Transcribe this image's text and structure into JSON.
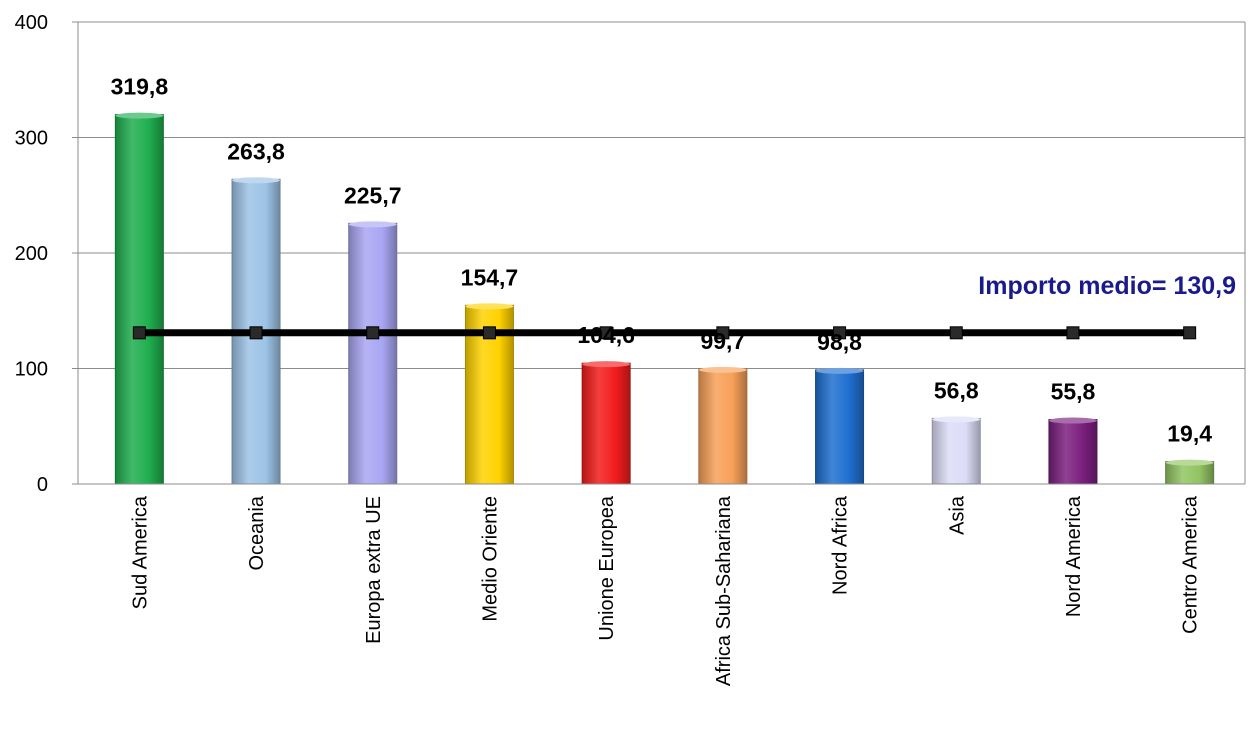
{
  "chart_data": {
    "type": "bar",
    "title": "",
    "xlabel": "",
    "ylabel": "",
    "ylim": [
      0,
      400
    ],
    "yticks": [
      0,
      100,
      200,
      300,
      400
    ],
    "grid": "horizontal",
    "categories": [
      "Sud America",
      "Oceania",
      "Europa extra UE",
      "Medio Oriente",
      "Unione Europea",
      "Africa Sub-Sahariana",
      "Nord Africa",
      "Asia",
      "Nord America",
      "Centro America"
    ],
    "values": [
      319.8,
      263.8,
      225.7,
      154.7,
      104.6,
      99.7,
      98.8,
      56.8,
      55.8,
      19.4
    ],
    "data_labels": [
      "319,8",
      "263,8",
      "225,7",
      "154,7",
      "104,6",
      "99,7",
      "98,8",
      "56,8",
      "55,8",
      "19,4"
    ],
    "bar_colors": [
      "#1fae4f",
      "#9dc3e6",
      "#a9a6f3",
      "#ffd200",
      "#f21c1c",
      "#f7a058",
      "#1f6fd0",
      "#dcdcf7",
      "#7b1f7f",
      "#92c463"
    ],
    "reference_line": {
      "label": "Importo medio= 130,9",
      "value": 130.9,
      "line_color": "#000000",
      "label_color": "#1a1a8c"
    }
  }
}
